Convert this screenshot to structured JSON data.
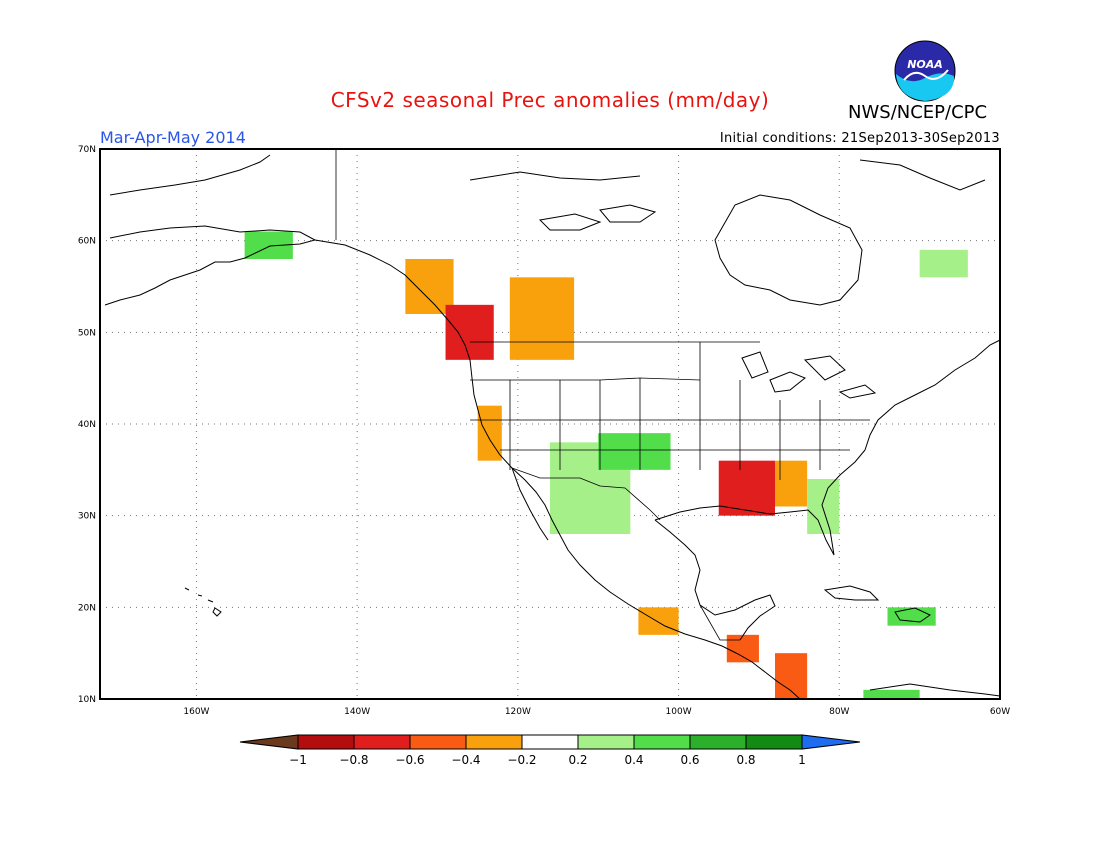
{
  "header": {
    "title": "CFSv2 seasonal Prec anomalies (mm/day)",
    "agency": "NWS/NCEP/CPC",
    "period": "Mar-Apr-May 2014",
    "initial_conditions": "Initial conditions: 21Sep2013-30Sep2013",
    "logo_text": "NOAA",
    "title_color": "#e8130f",
    "period_color": "#2a55e8"
  },
  "map": {
    "projection": "lat-lon",
    "lon_range": [
      -172,
      -60
    ],
    "lat_range": [
      10,
      70
    ],
    "lon_ticks": [
      "160W",
      "140W",
      "120W",
      "100W",
      "80W",
      "60W"
    ],
    "lat_ticks": [
      "70N",
      "60N",
      "50N",
      "40N",
      "30N",
      "20N",
      "10N"
    ],
    "grid": "dotted"
  },
  "colorbar": {
    "labels": [
      "-1",
      "-0.8",
      "-0.6",
      "-0.4",
      "-0.2",
      "0.2",
      "0.4",
      "0.6",
      "0.8",
      "1"
    ],
    "colors": [
      "#6b3a1e",
      "#b40d0d",
      "#e01e1e",
      "#f95b15",
      "#f9a10c",
      "#ffffff",
      "#a6f08a",
      "#52dd4b",
      "#2cb02c",
      "#138a13",
      "#1e6cf0"
    ]
  },
  "chart_data": {
    "type": "heatmap",
    "variable": "Precipitation anomaly (mm/day)",
    "categories": [
      "-1",
      "-0.8",
      "-0.6",
      "-0.4",
      "-0.2",
      "0.2",
      "0.4",
      "0.6",
      "0.8",
      "1"
    ],
    "regions": [
      {
        "lon": [
          -154,
          -148
        ],
        "lat": [
          58,
          61
        ],
        "anomaly": 0.5
      },
      {
        "lon": [
          -134,
          -128
        ],
        "lat": [
          52,
          58
        ],
        "anomaly": -0.4
      },
      {
        "lon": [
          -129,
          -123
        ],
        "lat": [
          47,
          53
        ],
        "anomaly": -0.8
      },
      {
        "lon": [
          -121,
          -113
        ],
        "lat": [
          47,
          56
        ],
        "anomaly": -0.3
      },
      {
        "lon": [
          -125,
          -122
        ],
        "lat": [
          36,
          42
        ],
        "anomaly": -0.3
      },
      {
        "lon": [
          -116,
          -106
        ],
        "lat": [
          28,
          38
        ],
        "anomaly": 0.3
      },
      {
        "lon": [
          -110,
          -101
        ],
        "lat": [
          35,
          39
        ],
        "anomaly": 0.5
      },
      {
        "lon": [
          -95,
          -88
        ],
        "lat": [
          30,
          36
        ],
        "anomaly": -0.7
      },
      {
        "lon": [
          -88,
          -84
        ],
        "lat": [
          31,
          36
        ],
        "anomaly": -0.3
      },
      {
        "lon": [
          -84,
          -80
        ],
        "lat": [
          28,
          34
        ],
        "anomaly": 0.3
      },
      {
        "lon": [
          -105,
          -100
        ],
        "lat": [
          17,
          20
        ],
        "anomaly": -0.3
      },
      {
        "lon": [
          -94,
          -90
        ],
        "lat": [
          14,
          17
        ],
        "anomaly": -0.6
      },
      {
        "lon": [
          -88,
          -84
        ],
        "lat": [
          10,
          15
        ],
        "anomaly": -0.6
      },
      {
        "lon": [
          -74,
          -68
        ],
        "lat": [
          18,
          20
        ],
        "anomaly": 0.5
      },
      {
        "lon": [
          -77,
          -70
        ],
        "lat": [
          10,
          11
        ],
        "anomaly": 0.4
      },
      {
        "lon": [
          -70,
          -64
        ],
        "lat": [
          56,
          59
        ],
        "anomaly": 0.3
      }
    ]
  }
}
